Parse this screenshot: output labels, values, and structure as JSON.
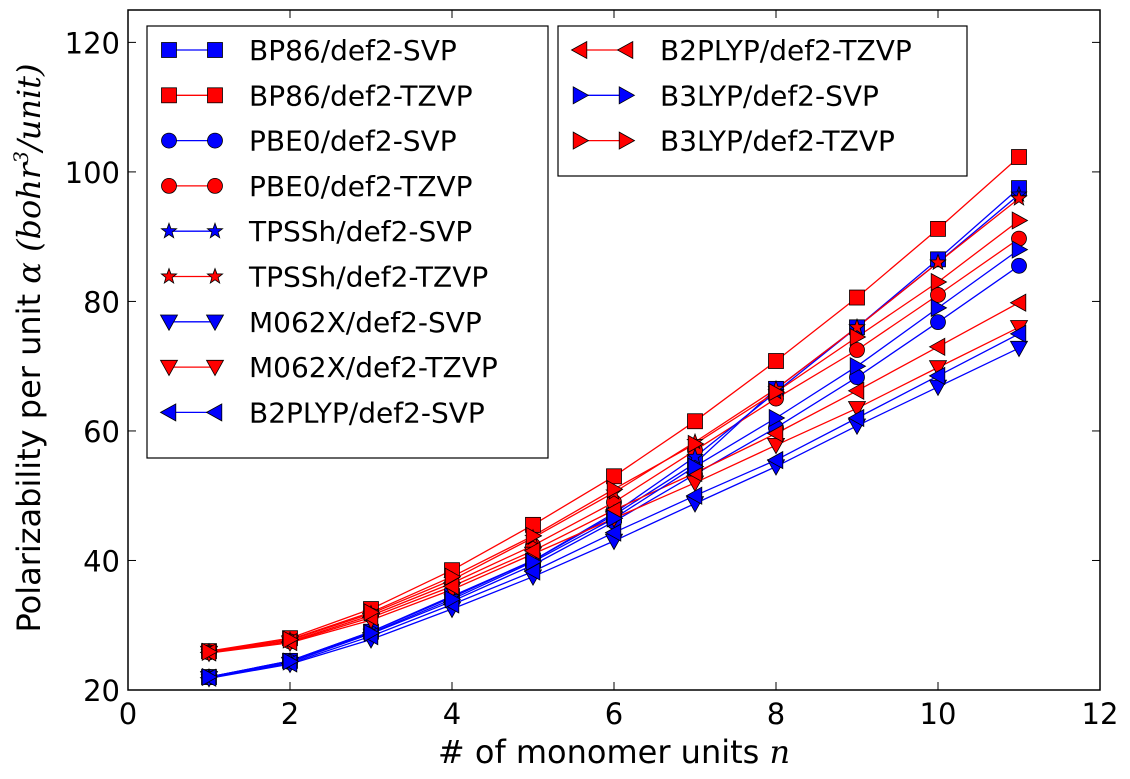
{
  "chart_data": {
    "type": "line",
    "xlabel": "# of monomer units",
    "xlabel_var": "n",
    "ylabel": "Polarizability per unit",
    "ylabel_var": "α",
    "ylabel_unit": "(bohr",
    "ylabel_unit_exp": "3",
    "ylabel_unit_tail": "/unit)",
    "xlim": [
      0,
      12
    ],
    "ylim": [
      20,
      125
    ],
    "xticks": [
      0,
      2,
      4,
      6,
      8,
      10,
      12
    ],
    "yticks": [
      20,
      40,
      60,
      80,
      100,
      120
    ],
    "grid": false,
    "legend_placement": "top-left, two boxes",
    "x": [
      1,
      2,
      3,
      4,
      5,
      6,
      7,
      8,
      9,
      10,
      11
    ],
    "series": [
      {
        "name": "BP86/def2-SVP",
        "color": "#0000ff",
        "marker": "square",
        "values": [
          22.0,
          24.5,
          29.0,
          34.5,
          40.0,
          47.0,
          55.0,
          66.5,
          76.0,
          86.5,
          97.5
        ]
      },
      {
        "name": "BP86/def2-TZVP",
        "color": "#ff0000",
        "marker": "square",
        "values": [
          26.0,
          28.0,
          32.5,
          38.5,
          45.5,
          53.0,
          61.5,
          70.8,
          80.6,
          91.2,
          102.3
        ]
      },
      {
        "name": "PBE0/def2-SVP",
        "color": "#0000ff",
        "marker": "circle",
        "values": [
          22.0,
          24.3,
          28.7,
          33.7,
          39.3,
          46.0,
          53.3,
          60.5,
          68.3,
          76.8,
          85.5
        ]
      },
      {
        "name": "PBE0/def2-TZVP",
        "color": "#ff0000",
        "marker": "circle",
        "values": [
          25.8,
          27.5,
          31.5,
          36.5,
          42.3,
          49.0,
          57.0,
          65.0,
          72.5,
          81.0,
          89.7
        ]
      },
      {
        "name": "TPSSh/def2-SVP",
        "color": "#0000ff",
        "marker": "star",
        "values": [
          22.0,
          24.5,
          29.0,
          34.3,
          40.0,
          47.3,
          56.0,
          66.0,
          76.0,
          86.0,
          96.5
        ]
      },
      {
        "name": "TPSSh/def2-TZVP",
        "color": "#ff0000",
        "marker": "star",
        "values": [
          25.9,
          27.7,
          31.8,
          37.0,
          43.5,
          50.5,
          58.3,
          66.5,
          76.0,
          86.0,
          95.9
        ]
      },
      {
        "name": "M062X/def2-SVP",
        "color": "#0000ff",
        "marker": "tri-down",
        "values": [
          21.8,
          24.0,
          27.8,
          32.5,
          37.5,
          43.0,
          48.8,
          54.5,
          60.8,
          66.8,
          72.8
        ]
      },
      {
        "name": "M062X/def2-TZVP",
        "color": "#ff0000",
        "marker": "tri-down",
        "values": [
          25.7,
          27.3,
          30.8,
          35.5,
          41.0,
          46.5,
          52.0,
          57.8,
          63.5,
          69.8,
          76.0
        ]
      },
      {
        "name": "B2PLYP/def2-SVP",
        "color": "#0000ff",
        "marker": "tri-left",
        "values": [
          21.9,
          24.1,
          28.3,
          33.2,
          38.3,
          44.3,
          50.0,
          55.5,
          62.0,
          68.5,
          75.0
        ]
      },
      {
        "name": "B2PLYP/def2-TZVP",
        "color": "#ff0000",
        "marker": "tri-left",
        "values": [
          25.8,
          27.4,
          31.2,
          36.0,
          41.5,
          47.8,
          53.5,
          59.6,
          66.2,
          73.0,
          79.8
        ]
      },
      {
        "name": "B3LYP/def2-SVP",
        "color": "#0000ff",
        "marker": "tri-right",
        "values": [
          22.0,
          24.4,
          28.8,
          34.0,
          39.8,
          46.5,
          54.5,
          62.0,
          70.0,
          79.0,
          88.0
        ]
      },
      {
        "name": "B3LYP/def2-TZVP",
        "color": "#ff0000",
        "marker": "tri-right",
        "values": [
          25.9,
          27.8,
          32.0,
          37.5,
          43.8,
          51.0,
          58.0,
          66.0,
          74.5,
          83.0,
          92.5
        ]
      }
    ]
  }
}
